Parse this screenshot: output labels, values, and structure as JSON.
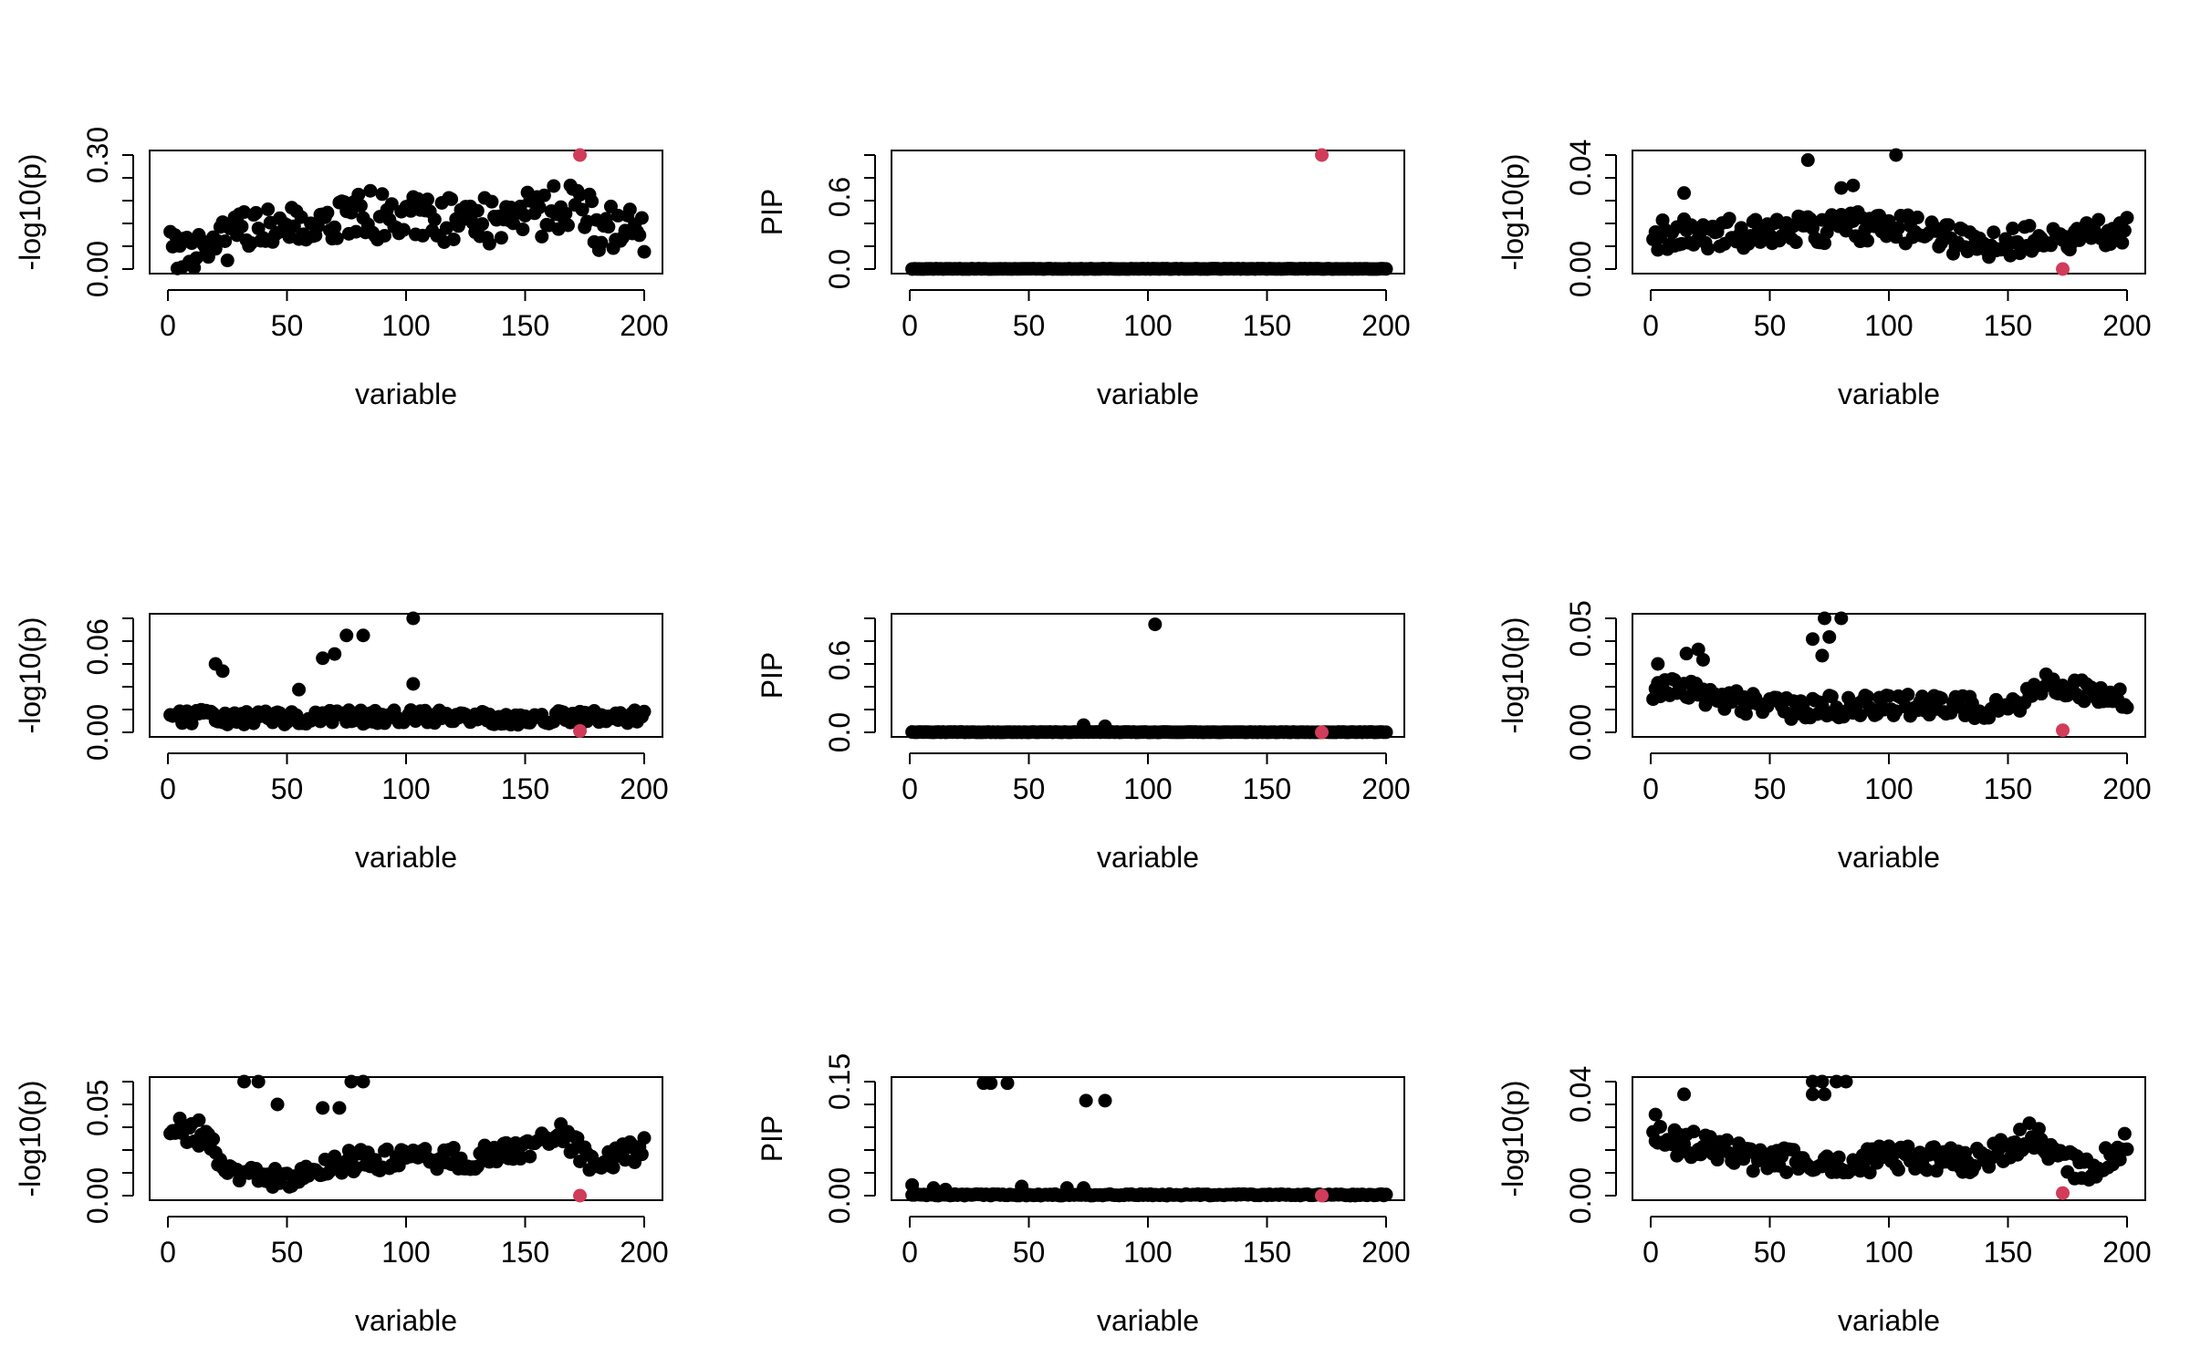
{
  "accent_color": "#d03c5a",
  "point_color": "#000000",
  "chart_data": [
    {
      "type": "scatter",
      "xlabel": "variable",
      "ylabel": "-log10(p)",
      "xlim": [
        0,
        200
      ],
      "ylim": [
        0,
        0.3
      ],
      "xticks": [
        "0",
        "50",
        "100",
        "150",
        "200"
      ],
      "yticks": [
        "0.00",
        "0.30"
      ],
      "highlight_x": 173,
      "highlight_y": 0.3,
      "seed": 11,
      "anchors": [
        [
          0,
          0.05
        ],
        [
          10,
          0.05
        ],
        [
          20,
          0.08
        ],
        [
          40,
          0.1
        ],
        [
          60,
          0.12
        ],
        [
          80,
          0.15
        ],
        [
          100,
          0.14
        ],
        [
          120,
          0.14
        ],
        [
          140,
          0.13
        ],
        [
          160,
          0.16
        ],
        [
          170,
          0.18
        ],
        [
          180,
          0.12
        ],
        [
          200,
          0.1
        ]
      ],
      "spread": 0.13
    },
    {
      "type": "scatter",
      "xlabel": "variable",
      "ylabel": "PIP",
      "xlim": [
        0,
        200
      ],
      "ylim": [
        0,
        0.95
      ],
      "xticks": [
        "0",
        "50",
        "100",
        "150",
        "200"
      ],
      "yticks": [
        "0.0",
        "0.6"
      ],
      "highlight_x": 173,
      "highlight_y": 0.95,
      "seed": 12,
      "baseline": 0.003,
      "spikes": []
    },
    {
      "type": "scatter",
      "xlabel": "variable",
      "ylabel": "-log10(p)",
      "xlim": [
        0,
        200
      ],
      "ylim": [
        0,
        0.045
      ],
      "xticks": [
        "0",
        "50",
        "100",
        "150",
        "200"
      ],
      "yticks": [
        "0.00",
        "0.04"
      ],
      "highlight_x": 173,
      "highlight_y": 0.0,
      "seed": 13,
      "anchors": [
        [
          0,
          0.014
        ],
        [
          50,
          0.015
        ],
        [
          100,
          0.018
        ],
        [
          140,
          0.01
        ],
        [
          160,
          0.012
        ],
        [
          200,
          0.015
        ]
      ],
      "spread": 0.012,
      "extra": [
        [
          66,
          0.043
        ],
        [
          103,
          0.045
        ],
        [
          85,
          0.033
        ],
        [
          80,
          0.032
        ],
        [
          14,
          0.03
        ]
      ]
    },
    {
      "type": "scatter",
      "xlabel": "variable",
      "ylabel": "-log10(p)",
      "xlim": [
        0,
        200
      ],
      "ylim": [
        0,
        0.08
      ],
      "xticks": [
        "0",
        "50",
        "100",
        "150",
        "200"
      ],
      "yticks": [
        "0.00",
        "0.06"
      ],
      "highlight_x": 173,
      "highlight_y": 0.001,
      "seed": 14,
      "anchors": [
        [
          0,
          0.012
        ],
        [
          50,
          0.01
        ],
        [
          100,
          0.012
        ],
        [
          150,
          0.01
        ],
        [
          200,
          0.012
        ]
      ],
      "spread": 0.01,
      "extra": [
        [
          103,
          0.08
        ],
        [
          75,
          0.068
        ],
        [
          82,
          0.068
        ],
        [
          70,
          0.055
        ],
        [
          65,
          0.052
        ],
        [
          20,
          0.048
        ],
        [
          23,
          0.043
        ],
        [
          103,
          0.034
        ],
        [
          55,
          0.03
        ]
      ]
    },
    {
      "type": "scatter",
      "xlabel": "variable",
      "ylabel": "PIP",
      "xlim": [
        0,
        200
      ],
      "ylim": [
        0,
        0.95
      ],
      "xticks": [
        "0",
        "50",
        "100",
        "150",
        "200"
      ],
      "yticks": [
        "0.0",
        "0.6"
      ],
      "highlight_x": 173,
      "highlight_y": 0.0,
      "seed": 15,
      "baseline": 0.003,
      "spikes": [
        [
          103,
          0.9
        ],
        [
          73,
          0.06
        ],
        [
          82,
          0.05
        ]
      ]
    },
    {
      "type": "scatter",
      "xlabel": "variable",
      "ylabel": "-log10(p)",
      "xlim": [
        0,
        200
      ],
      "ylim": [
        0,
        0.055
      ],
      "xticks": [
        "0",
        "50",
        "100",
        "150",
        "200"
      ],
      "yticks": [
        "0.00",
        "0.05"
      ],
      "highlight_x": 173,
      "highlight_y": 0.001,
      "seed": 16,
      "anchors": [
        [
          0,
          0.022
        ],
        [
          20,
          0.02
        ],
        [
          50,
          0.012
        ],
        [
          100,
          0.014
        ],
        [
          150,
          0.012
        ],
        [
          165,
          0.025
        ],
        [
          200,
          0.015
        ]
      ],
      "spread": 0.011,
      "extra": [
        [
          73,
          0.055
        ],
        [
          80,
          0.055
        ],
        [
          68,
          0.045
        ],
        [
          75,
          0.046
        ],
        [
          72,
          0.037
        ],
        [
          3,
          0.033
        ],
        [
          20,
          0.04
        ],
        [
          15,
          0.038
        ],
        [
          22,
          0.035
        ]
      ]
    },
    {
      "type": "scatter",
      "xlabel": "variable",
      "ylabel": "-log10(p)",
      "xlim": [
        0,
        200
      ],
      "ylim": [
        0,
        0.065
      ],
      "xticks": [
        "0",
        "50",
        "100",
        "150",
        "200"
      ],
      "yticks": [
        "0.00",
        "0.05"
      ],
      "highlight_x": 173,
      "highlight_y": 0.0,
      "seed": 17,
      "anchors": [
        [
          0,
          0.04
        ],
        [
          15,
          0.033
        ],
        [
          30,
          0.012
        ],
        [
          50,
          0.01
        ],
        [
          75,
          0.02
        ],
        [
          100,
          0.022
        ],
        [
          130,
          0.022
        ],
        [
          150,
          0.028
        ],
        [
          165,
          0.036
        ],
        [
          180,
          0.018
        ],
        [
          200,
          0.028
        ]
      ],
      "spread": 0.013,
      "extra": [
        [
          32,
          0.065
        ],
        [
          38,
          0.065
        ],
        [
          77,
          0.065
        ],
        [
          82,
          0.065
        ],
        [
          46,
          0.052
        ],
        [
          65,
          0.05
        ],
        [
          72,
          0.05
        ],
        [
          5,
          0.044
        ],
        [
          13,
          0.043
        ]
      ]
    },
    {
      "type": "scatter",
      "xlabel": "variable",
      "ylabel": "PIP",
      "xlim": [
        0,
        200
      ],
      "ylim": [
        0,
        0.15
      ],
      "xticks": [
        "0",
        "50",
        "100",
        "150",
        "200"
      ],
      "yticks": [
        "0.00",
        "0.15"
      ],
      "highlight_x": 173,
      "highlight_y": 0.0,
      "seed": 18,
      "baseline": 0.002,
      "spikes": [
        [
          31,
          0.148
        ],
        [
          34,
          0.148
        ],
        [
          41,
          0.148
        ],
        [
          74,
          0.125
        ],
        [
          82,
          0.125
        ],
        [
          1,
          0.014
        ],
        [
          10,
          0.01
        ],
        [
          15,
          0.008
        ],
        [
          47,
          0.012
        ],
        [
          66,
          0.01
        ],
        [
          73,
          0.01
        ]
      ]
    },
    {
      "type": "scatter",
      "xlabel": "variable",
      "ylabel": "-log10(p)",
      "xlim": [
        0,
        200
      ],
      "ylim": [
        0,
        0.045
      ],
      "xticks": [
        "0",
        "50",
        "100",
        "150",
        "200"
      ],
      "yticks": [
        "0.00",
        "0.04"
      ],
      "highlight_x": 173,
      "highlight_y": 0.001,
      "seed": 19,
      "anchors": [
        [
          0,
          0.024
        ],
        [
          20,
          0.02
        ],
        [
          40,
          0.015
        ],
        [
          60,
          0.014
        ],
        [
          100,
          0.015
        ],
        [
          140,
          0.014
        ],
        [
          160,
          0.025
        ],
        [
          180,
          0.01
        ],
        [
          200,
          0.02
        ]
      ],
      "spread": 0.011,
      "extra": [
        [
          68,
          0.045
        ],
        [
          72,
          0.045
        ],
        [
          78,
          0.045
        ],
        [
          82,
          0.045
        ],
        [
          68,
          0.04
        ],
        [
          73,
          0.04
        ],
        [
          14,
          0.04
        ],
        [
          2,
          0.032
        ]
      ]
    }
  ]
}
